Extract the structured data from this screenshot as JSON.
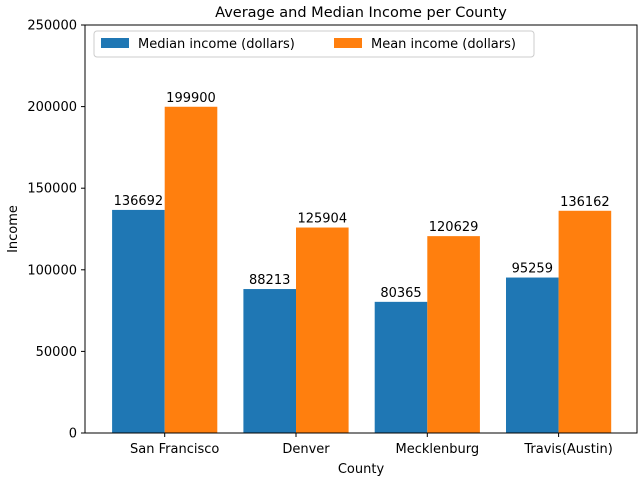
{
  "chart_data": {
    "type": "bar",
    "title": "Average and Median Income per County",
    "xlabel": "County",
    "ylabel": "Income",
    "categories": [
      "San Francisco",
      "Denver",
      "Mecklenburg",
      "Travis(Austin)"
    ],
    "series": [
      {
        "name": "Median income (dollars)",
        "values": [
          136692,
          88213,
          80365,
          95259
        ],
        "color": "#1f77b4"
      },
      {
        "name": "Mean income (dollars)",
        "values": [
          199900,
          125904,
          120629,
          136162
        ],
        "color": "#ff7f0e"
      }
    ],
    "ylim": [
      0,
      250000
    ],
    "yticks": [
      0,
      50000,
      100000,
      150000,
      200000,
      250000
    ],
    "grid": false,
    "legend": "top-left"
  }
}
